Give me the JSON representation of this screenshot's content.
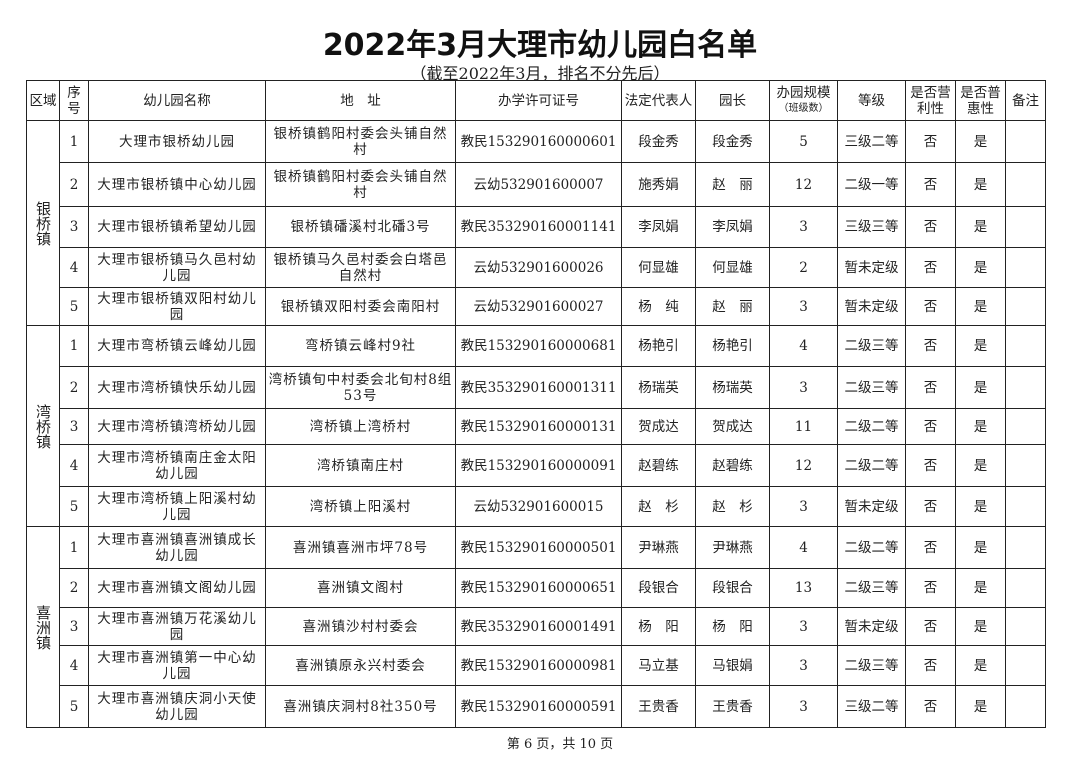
{
  "title": "2022年3月大理市幼儿园白名单",
  "subtitle": "（截至2022年3月，排名不分先后）",
  "headers": {
    "region": "区域",
    "seq": "序号",
    "name": "幼儿园名称",
    "address": "地　址",
    "license": "办学许可证号",
    "legal_rep": "法定代表人",
    "principal": "园长",
    "scale": "办园规模",
    "scale_sub": "（班级数）",
    "grade": "等级",
    "for_profit": "是否营利性",
    "inclusive": "是否普惠性",
    "remark": "备注"
  },
  "groups": [
    {
      "region": "银桥镇",
      "rows": [
        {
          "seq": "1",
          "name": "大理市银桥幼儿园",
          "address": "银桥镇鹤阳村委会头铺自然村",
          "license": "教民153290160000601",
          "legal_rep": "段金秀",
          "principal": "段金秀",
          "scale": "5",
          "grade": "三级二等",
          "for_profit": "否",
          "inclusive": "是",
          "remark": ""
        },
        {
          "seq": "2",
          "name": "大理市银桥镇中心幼儿园",
          "address": "银桥镇鹤阳村委会头铺自然村",
          "license": "云幼532901600007",
          "legal_rep": "施秀娟",
          "principal": "赵　丽",
          "scale": "12",
          "grade": "二级一等",
          "for_profit": "否",
          "inclusive": "是",
          "remark": ""
        },
        {
          "seq": "3",
          "name": "大理市银桥镇希望幼儿园",
          "address": "银桥镇磻溪村北磻3号",
          "license": "教民353290160001141",
          "legal_rep": "李凤娟",
          "principal": "李凤娟",
          "scale": "3",
          "grade": "三级三等",
          "for_profit": "否",
          "inclusive": "是",
          "remark": ""
        },
        {
          "seq": "4",
          "name": "大理市银桥镇马久邑村幼儿园",
          "address": "银桥镇马久邑村委会白塔邑自然村",
          "license": "云幼532901600026",
          "legal_rep": "何显雄",
          "principal": "何显雄",
          "scale": "2",
          "grade": "暂未定级",
          "for_profit": "否",
          "inclusive": "是",
          "remark": ""
        },
        {
          "seq": "5",
          "name": "大理市银桥镇双阳村幼儿园",
          "address": "银桥镇双阳村委会南阳村",
          "license": "云幼532901600027",
          "legal_rep": "杨　纯",
          "principal": "赵　丽",
          "scale": "3",
          "grade": "暂未定级",
          "for_profit": "否",
          "inclusive": "是",
          "remark": ""
        }
      ]
    },
    {
      "region": "湾桥镇",
      "rows": [
        {
          "seq": "1",
          "name": "大理市弯桥镇云峰幼儿园",
          "address": "弯桥镇云峰村9社",
          "license": "教民153290160000681",
          "legal_rep": "杨艳引",
          "principal": "杨艳引",
          "scale": "4",
          "grade": "二级三等",
          "for_profit": "否",
          "inclusive": "是",
          "remark": ""
        },
        {
          "seq": "2",
          "name": "大理市湾桥镇快乐幼儿园",
          "address": "湾桥镇旬中村委会北旬村8组53号",
          "license": "教民353290160001311",
          "legal_rep": "杨瑞英",
          "principal": "杨瑞英",
          "scale": "3",
          "grade": "二级三等",
          "for_profit": "否",
          "inclusive": "是",
          "remark": ""
        },
        {
          "seq": "3",
          "name": "大理市湾桥镇湾桥幼儿园",
          "address": "湾桥镇上湾桥村",
          "license": "教民153290160000131",
          "legal_rep": "贺成达",
          "principal": "贺成达",
          "scale": "11",
          "grade": "二级二等",
          "for_profit": "否",
          "inclusive": "是",
          "remark": ""
        },
        {
          "seq": "4",
          "name": "大理市湾桥镇南庄金太阳幼儿园",
          "address": "湾桥镇南庄村",
          "license": "教民153290160000091",
          "legal_rep": "赵碧练",
          "principal": "赵碧练",
          "scale": "12",
          "grade": "二级二等",
          "for_profit": "否",
          "inclusive": "是",
          "remark": ""
        },
        {
          "seq": "5",
          "name": "大理市湾桥镇上阳溪村幼儿园",
          "address": "湾桥镇上阳溪村",
          "license": "云幼532901600015",
          "legal_rep": "赵　杉",
          "principal": "赵　杉",
          "scale": "3",
          "grade": "暂未定级",
          "for_profit": "否",
          "inclusive": "是",
          "remark": ""
        }
      ]
    },
    {
      "region": "喜洲镇",
      "rows": [
        {
          "seq": "1",
          "name": "大理市喜洲镇喜洲镇成长幼儿园",
          "address": "喜洲镇喜洲市坪78号",
          "license": "教民153290160000501",
          "legal_rep": "尹琳燕",
          "principal": "尹琳燕",
          "scale": "4",
          "grade": "二级二等",
          "for_profit": "否",
          "inclusive": "是",
          "remark": ""
        },
        {
          "seq": "2",
          "name": "大理市喜洲镇文阁幼儿园",
          "address": "喜洲镇文阁村",
          "license": "教民153290160000651",
          "legal_rep": "段银合",
          "principal": "段银合",
          "scale": "13",
          "grade": "二级三等",
          "for_profit": "否",
          "inclusive": "是",
          "remark": ""
        },
        {
          "seq": "3",
          "name": "大理市喜洲镇万花溪幼儿园",
          "address": "喜洲镇沙村村委会",
          "license": "教民353290160001491",
          "legal_rep": "杨　阳",
          "principal": "杨　阳",
          "scale": "3",
          "grade": "暂未定级",
          "for_profit": "否",
          "inclusive": "是",
          "remark": ""
        },
        {
          "seq": "4",
          "name": "大理市喜洲镇第一中心幼儿园",
          "address": "喜洲镇原永兴村委会",
          "license": "教民153290160000981",
          "legal_rep": "马立基",
          "principal": "马银娟",
          "scale": "3",
          "grade": "二级三等",
          "for_profit": "否",
          "inclusive": "是",
          "remark": ""
        },
        {
          "seq": "5",
          "name": "大理市喜洲镇庆洞小天使幼儿园",
          "address": "喜洲镇庆洞村8社350号",
          "license": "教民153290160000591",
          "legal_rep": "王贵香",
          "principal": "王贵香",
          "scale": "3",
          "grade": "三级二等",
          "for_profit": "否",
          "inclusive": "是",
          "remark": ""
        }
      ]
    }
  ],
  "footer": "第 6 页，共 10 页"
}
